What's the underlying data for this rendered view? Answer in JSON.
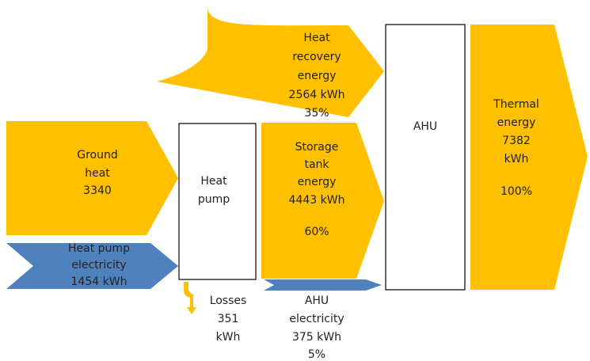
{
  "flows": {
    "heat_recovery": {
      "lines": [
        "Heat",
        "recovery",
        "energy",
        "2564 kWh",
        "35%"
      ]
    },
    "ground_heat": {
      "lines": [
        "Ground",
        "heat",
        "3340"
      ]
    },
    "heat_pump_electricity": {
      "lines": [
        "Heat pump",
        "electricity",
        "1454 kWh"
      ]
    },
    "storage_tank": {
      "lines": [
        "Storage",
        "tank",
        "energy",
        "4443 kWh"
      ],
      "share": "60%"
    },
    "thermal": {
      "lines": [
        "Thermal",
        "energy",
        "7382",
        "kWh"
      ],
      "share": "100%"
    },
    "losses": {
      "lines": [
        "Losses",
        "351",
        "kWh"
      ]
    },
    "ahu_electricity": {
      "lines": [
        "AHU",
        "electricity",
        "375 kWh",
        "5%"
      ]
    }
  },
  "boxes": {
    "heat_pump": {
      "lines": [
        "Heat",
        "pump"
      ]
    },
    "ahu": {
      "lines": [
        "AHU"
      ]
    }
  }
}
